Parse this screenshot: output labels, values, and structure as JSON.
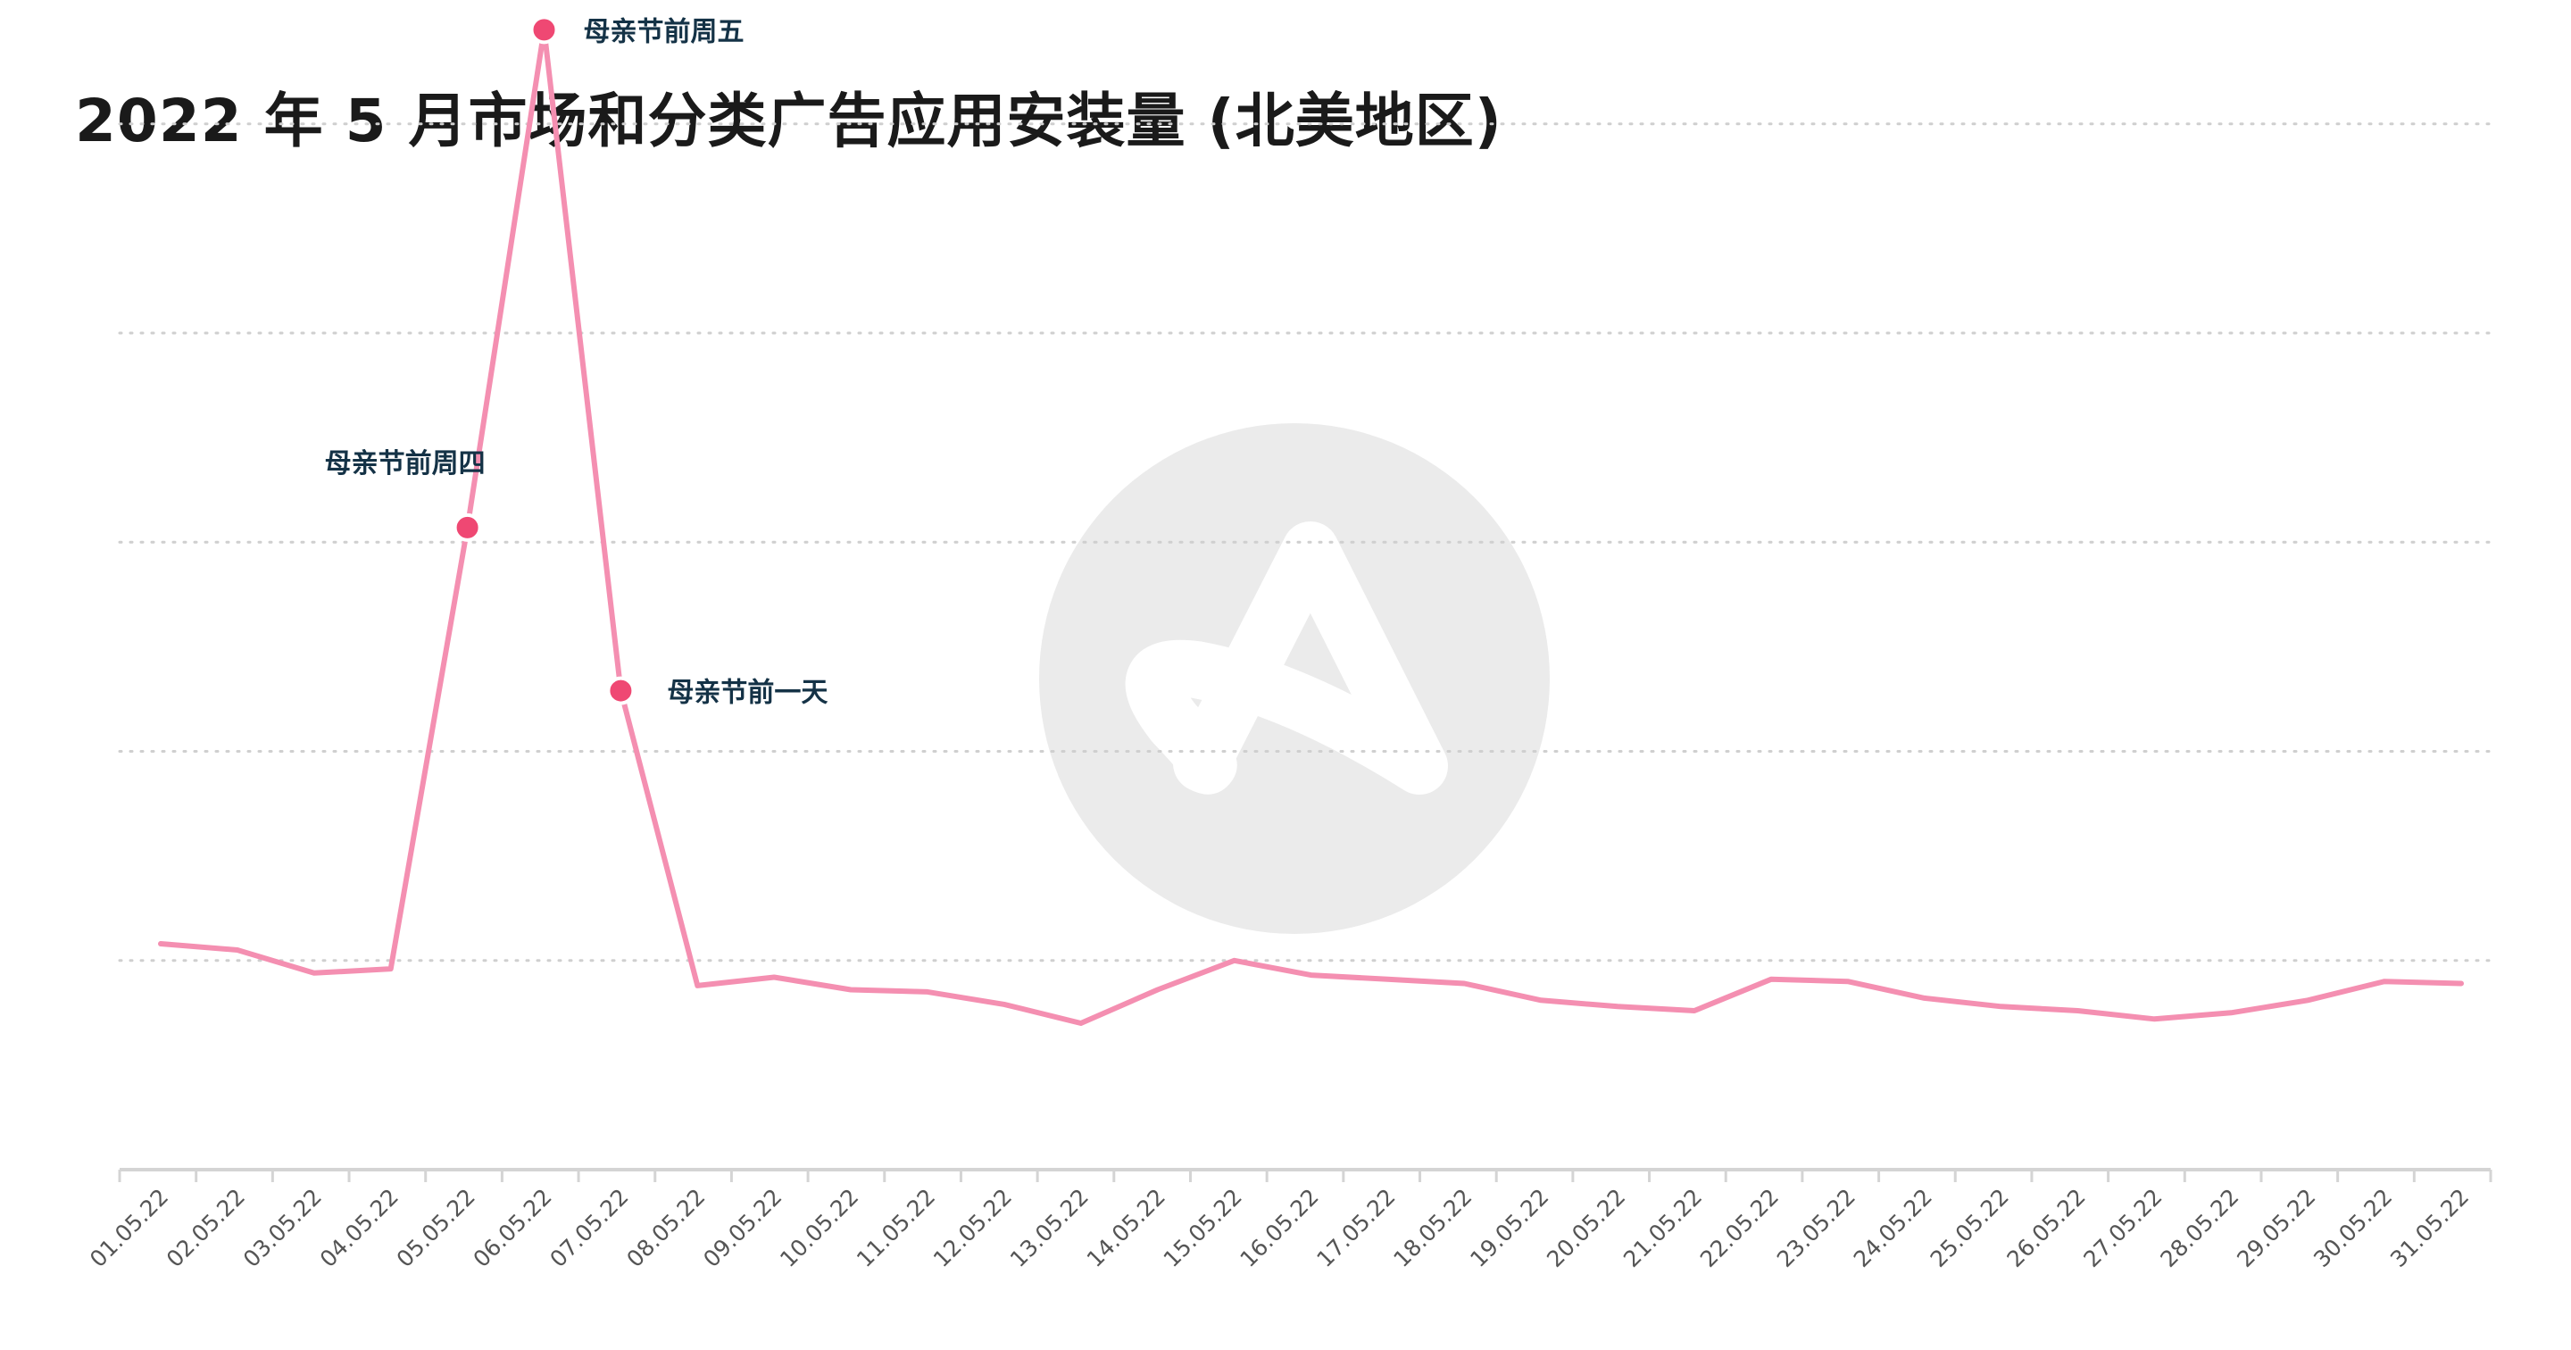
{
  "chart_data": {
    "type": "line",
    "title": "2022 年 5 月市场和分类广告应用安装量 (北美地区)",
    "xlabel": "",
    "ylabel": "",
    "y_tick_labels_shown": false,
    "grid": true,
    "ylim": [
      0,
      5
    ],
    "categories": [
      "01.05.22",
      "02.05.22",
      "03.05.22",
      "04.05.22",
      "05.05.22",
      "06.05.22",
      "07.05.22",
      "08.05.22",
      "09.05.22",
      "10.05.22",
      "11.05.22",
      "12.05.22",
      "13.05.22",
      "14.05.22",
      "15.05.22",
      "16.05.22",
      "17.05.22",
      "18.05.22",
      "19.05.22",
      "20.05.22",
      "21.05.22",
      "22.05.22",
      "23.05.22",
      "24.05.22",
      "25.05.22",
      "26.05.22",
      "27.05.22",
      "28.05.22",
      "29.05.22",
      "30.05.22",
      "31.05.22"
    ],
    "series": [
      {
        "color": "#f48fb1",
        "values": [
          1.08,
          1.05,
          0.94,
          0.96,
          3.07,
          5.45,
          2.29,
          0.88,
          0.92,
          0.86,
          0.85,
          0.79,
          0.7,
          0.86,
          1.0,
          0.93,
          0.91,
          0.89,
          0.81,
          0.78,
          0.76,
          0.91,
          0.9,
          0.82,
          0.78,
          0.76,
          0.72,
          0.75,
          0.81,
          0.9,
          0.89
        ]
      }
    ],
    "annotations": [
      {
        "index": 4,
        "label": "母亲节前周四",
        "color": "#ef4873"
      },
      {
        "index": 5,
        "label": "母亲节前周五",
        "color": "#ef4873"
      },
      {
        "index": 6,
        "label": "母亲节前一天",
        "color": "#ef4873"
      }
    ],
    "watermark": "adjust-logo"
  }
}
